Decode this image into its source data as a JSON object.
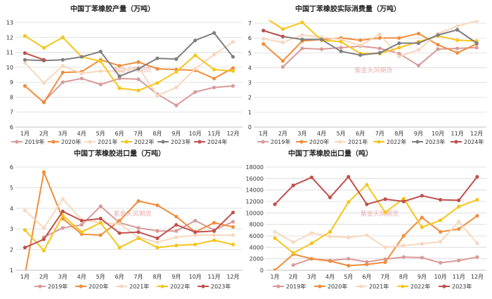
{
  "watermark": "紫金天风期货",
  "chart_data": [
    {
      "type": "line",
      "title": "中国丁苯橡胶产量（万吨）",
      "categories": [
        "1月",
        "2月",
        "3月",
        "4月",
        "5月",
        "6月",
        "7月",
        "8月",
        "9月",
        "10月",
        "11月",
        "12月"
      ],
      "ylim": [
        6,
        13
      ],
      "yticks": [
        6,
        7,
        8,
        9,
        10,
        11,
        12,
        13
      ],
      "series": [
        {
          "name": "2019年",
          "color": "#d99a9a",
          "values": [
            null,
            7.7,
            9.0,
            9.25,
            8.85,
            9.25,
            9.2,
            8.2,
            7.45,
            8.35,
            8.65,
            8.75
          ]
        },
        {
          "name": "2020年",
          "color": "#f08d3c",
          "values": [
            8.75,
            7.65,
            9.65,
            9.7,
            10.5,
            10.1,
            10.35,
            9.9,
            9.85,
            9.8,
            9.25,
            9.95
          ]
        },
        {
          "name": "2021年",
          "color": "#f8d7bd",
          "values": [
            10.3,
            8.95,
            10.1,
            9.6,
            9.75,
            9.75,
            10.0,
            8.1,
            8.65,
            9.9,
            10.85,
            11.7
          ]
        },
        {
          "name": "2022年",
          "color": "#f6c51b",
          "values": [
            12.1,
            11.3,
            12.0,
            10.7,
            10.4,
            8.6,
            8.45,
            8.95,
            9.7,
            10.8,
            9.85,
            9.75
          ]
        },
        {
          "name": "2023年",
          "color": "#7f7f7f",
          "values": [
            10.5,
            10.45,
            10.5,
            10.7,
            11.05,
            9.4,
            9.9,
            10.6,
            10.55,
            11.8,
            12.3,
            10.7
          ]
        },
        {
          "name": "2024年",
          "color": "#c0504d",
          "values": [
            10.95,
            10.5,
            null,
            null,
            null,
            null,
            null,
            null,
            null,
            null,
            null,
            null
          ]
        }
      ]
    },
    {
      "type": "line",
      "title": "中国丁苯橡胶实际消费量（万吨）",
      "categories": [
        "1月",
        "2月",
        "3月",
        "4月",
        "5月",
        "6月",
        "7月",
        "8月",
        "9月",
        "10月",
        "11月",
        "12月"
      ],
      "ylim": [
        0,
        7
      ],
      "yticks": [
        0,
        1,
        2,
        3,
        4,
        5,
        6,
        7
      ],
      "series": [
        {
          "name": "2019年",
          "color": "#d99a9a",
          "values": [
            null,
            4.05,
            5.3,
            5.25,
            5.35,
            5.45,
            5.3,
            4.95,
            4.15,
            5.25,
            5.3,
            5.35
          ]
        },
        {
          "name": "2020年",
          "color": "#f08d3c",
          "values": [
            5.6,
            4.45,
            5.8,
            5.9,
            6.0,
            5.85,
            6.0,
            6.0,
            6.3,
            5.55,
            5.0,
            5.6
          ]
        },
        {
          "name": "2021年",
          "color": "#f8d7bd",
          "values": [
            5.95,
            5.7,
            6.2,
            6.05,
            5.9,
            5.5,
            6.25,
            4.75,
            5.2,
            6.3,
            6.8,
            7.15
          ]
        },
        {
          "name": "2022年",
          "color": "#f6c51b",
          "values": [
            7.45,
            6.6,
            7.05,
            5.85,
            5.75,
            4.95,
            4.95,
            5.35,
            5.75,
            6.15,
            5.85,
            5.8
          ]
        },
        {
          "name": "2023年",
          "color": "#7f7f7f",
          "values": [
            6.5,
            6.1,
            5.9,
            5.9,
            5.1,
            4.85,
            5.0,
            5.65,
            5.65,
            6.2,
            6.55,
            5.65
          ]
        },
        {
          "name": "2024年",
          "color": "#c0504d",
          "values": [
            6.5,
            6.1,
            null,
            null,
            null,
            null,
            null,
            null,
            null,
            null,
            null,
            null
          ]
        }
      ]
    },
    {
      "type": "line",
      "title": "中国丁苯橡胶进口量（万吨）",
      "categories": [
        "1月",
        "2月",
        "3月",
        "4月",
        "5月",
        "6月",
        "7月",
        "8月",
        "9月",
        "10月",
        "11月",
        "12月"
      ],
      "ylim": [
        1,
        6
      ],
      "yticks": [
        1,
        2,
        3,
        4,
        5,
        6
      ],
      "series": [
        {
          "name": "2019年",
          "color": "#d99a9a",
          "values": [
            null,
            2.6,
            3.05,
            3.2,
            4.1,
            3.3,
            3.05,
            2.9,
            2.9,
            3.4,
            2.95,
            3.35
          ]
        },
        {
          "name": "2020年",
          "color": "#f08d3c",
          "values": [
            0.8,
            5.75,
            3.5,
            2.75,
            2.7,
            3.4,
            4.35,
            4.15,
            3.6,
            2.85,
            3.3,
            3.1
          ]
        },
        {
          "name": "2021年",
          "color": "#f8d7bd",
          "values": [
            3.9,
            3.05,
            4.45,
            3.45,
            3.3,
            3.25,
            2.6,
            2.35,
            2.6,
            2.7,
            2.7,
            2.7
          ]
        },
        {
          "name": "2022年",
          "color": "#f6c51b",
          "values": [
            2.95,
            1.95,
            3.65,
            2.85,
            3.3,
            2.1,
            2.55,
            2.1,
            2.2,
            2.25,
            2.45,
            2.25
          ]
        },
        {
          "name": "2023年",
          "color": "#c0504d",
          "values": [
            2.1,
            2.5,
            3.85,
            3.4,
            3.5,
            2.8,
            2.85,
            2.55,
            3.2,
            2.85,
            2.9,
            3.8
          ]
        }
      ]
    },
    {
      "type": "line",
      "title": "中国丁苯橡胶出口量（吨）",
      "categories": [
        "1月",
        "2月",
        "3月",
        "4月",
        "5月",
        "6月",
        "7月",
        "8月",
        "9月",
        "10月",
        "11月",
        "12月"
      ],
      "ylim": [
        0,
        18000
      ],
      "yticks": [
        0,
        2000,
        4000,
        6000,
        8000,
        10000,
        12000,
        14000,
        16000,
        18000
      ],
      "series": [
        {
          "name": "2019年",
          "color": "#d99a9a",
          "values": [
            null,
            900,
            2000,
            1700,
            2000,
            1450,
            1950,
            2300,
            2200,
            1300,
            1700,
            2300
          ]
        },
        {
          "name": "2020年",
          "color": "#f08d3c",
          "values": [
            0,
            2800,
            2000,
            1600,
            800,
            1000,
            1400,
            6000,
            9200,
            6700,
            7200,
            9500
          ]
        },
        {
          "name": "2021年",
          "color": "#f8d7bd",
          "values": [
            6700,
            4900,
            6500,
            5900,
            5700,
            6100,
            4000,
            4300,
            4600,
            5000,
            8500,
            4700
          ]
        },
        {
          "name": "2022年",
          "color": "#f6c51b",
          "values": [
            5600,
            3000,
            4700,
            6700,
            11900,
            14900,
            10100,
            12500,
            7500,
            8700,
            11100,
            12300
          ]
        },
        {
          "name": "2023年",
          "color": "#c0504d",
          "values": [
            11500,
            14800,
            16200,
            12700,
            16300,
            11500,
            12400,
            12000,
            13000,
            12300,
            12200,
            16300
          ]
        }
      ]
    }
  ]
}
